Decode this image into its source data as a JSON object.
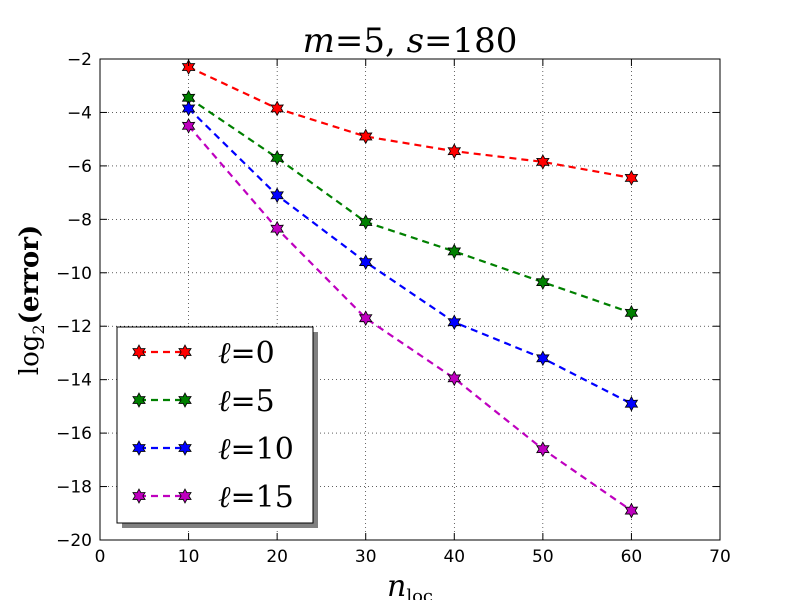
{
  "chart_data": {
    "type": "line",
    "title": "m = 5, s = 180",
    "title_parts": {
      "m_var": "m",
      "m_val": "5",
      "s_var": "s",
      "s_val": "180",
      "sep": ",",
      "eq": "="
    },
    "xlabel": "n_loc",
    "xlabel_parts": {
      "base": "n",
      "sub": "loc"
    },
    "ylabel": "log2(error)",
    "ylabel_parts": {
      "log": "log",
      "sub": "2",
      "arg": "(error)"
    },
    "xlim": [
      0,
      70
    ],
    "ylim": [
      -20,
      -2
    ],
    "xticks": [
      0,
      10,
      20,
      30,
      40,
      50,
      60,
      70
    ],
    "yticks": [
      -20,
      -18,
      -16,
      -14,
      -12,
      -10,
      -8,
      -6,
      -4,
      -2
    ],
    "grid": true,
    "legend_position": "lower-left",
    "x": [
      10,
      20,
      30,
      40,
      50,
      60
    ],
    "series": [
      {
        "name": "ℓ = 0",
        "label_prefix": "ℓ",
        "label_value": "0",
        "color": "#ff0000",
        "values": [
          -2.3,
          -3.85,
          -4.9,
          -5.45,
          -5.85,
          -6.45
        ]
      },
      {
        "name": "ℓ = 5",
        "label_prefix": "ℓ",
        "label_value": "5",
        "color": "#008000",
        "values": [
          -3.45,
          -5.7,
          -8.1,
          -9.2,
          -10.35,
          -11.5
        ]
      },
      {
        "name": "ℓ = 10",
        "label_prefix": "ℓ",
        "label_value": "10",
        "color": "#0000ff",
        "values": [
          -3.85,
          -7.1,
          -9.6,
          -11.85,
          -13.2,
          -14.9
        ]
      },
      {
        "name": "ℓ = 15",
        "label_prefix": "ℓ",
        "label_value": "15",
        "color": "#bf00bf",
        "values": [
          -4.5,
          -8.35,
          -11.7,
          -13.95,
          -16.6,
          -18.9
        ]
      }
    ]
  }
}
